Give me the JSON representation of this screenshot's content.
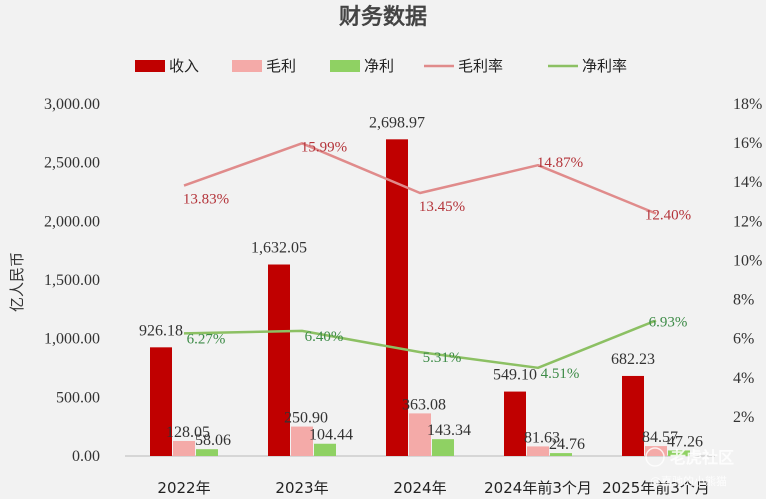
{
  "chart_data": {
    "type": "bar",
    "title": "财务数据",
    "categories": [
      "2022年",
      "2023年",
      "2024年",
      "2024年前3个月",
      "2025年前3个月"
    ],
    "ylabel": "亿人民币",
    "ylim": [
      0,
      3000
    ],
    "y_ticks": [
      "0.00",
      "500.00",
      "1,000.00",
      "1,500.00",
      "2,000.00",
      "2,500.00",
      "3,000.00"
    ],
    "y2lim": [
      0,
      18
    ],
    "y2_ticks": [
      "2%",
      "4%",
      "6%",
      "8%",
      "10%",
      "12%",
      "14%",
      "16%",
      "18%"
    ],
    "grid": false,
    "legend_position": "top",
    "series": [
      {
        "name": "收入",
        "kind": "bar",
        "color": "#c00000",
        "values": [
          926.18,
          1632.05,
          2698.97,
          549.1,
          682.23
        ],
        "labels": [
          "926.18",
          "1,632.05",
          "2,698.97",
          "549.10",
          "682.23"
        ]
      },
      {
        "name": "毛利",
        "kind": "bar",
        "color": "#f4aaa8",
        "values": [
          128.05,
          250.9,
          363.08,
          81.63,
          84.57
        ],
        "labels": [
          "128.05",
          "250.90",
          "363.08",
          "81.63",
          "84.57"
        ]
      },
      {
        "name": "净利",
        "kind": "bar",
        "color": "#8fd163",
        "values": [
          58.06,
          104.44,
          143.34,
          24.76,
          47.26
        ],
        "labels": [
          "58.06",
          "104.44",
          "143.34",
          "24.76",
          "47.26"
        ]
      },
      {
        "name": "毛利率",
        "kind": "line",
        "axis": "right",
        "color": "#e08b8b",
        "values": [
          13.83,
          15.99,
          13.45,
          14.87,
          12.4
        ],
        "labels": [
          "13.83%",
          "15.99%",
          "13.45%",
          "14.87%",
          "12.40%"
        ]
      },
      {
        "name": "净利率",
        "kind": "line",
        "axis": "right",
        "color": "#8cc063",
        "values": [
          6.27,
          6.4,
          5.31,
          4.51,
          6.93
        ],
        "labels": [
          "6.27%",
          "6.40%",
          "5.31%",
          "4.51%",
          "6.93%"
        ]
      }
    ],
    "watermark": {
      "brand": "老虎社区",
      "author": "@嘉驰的小熊猫"
    }
  }
}
